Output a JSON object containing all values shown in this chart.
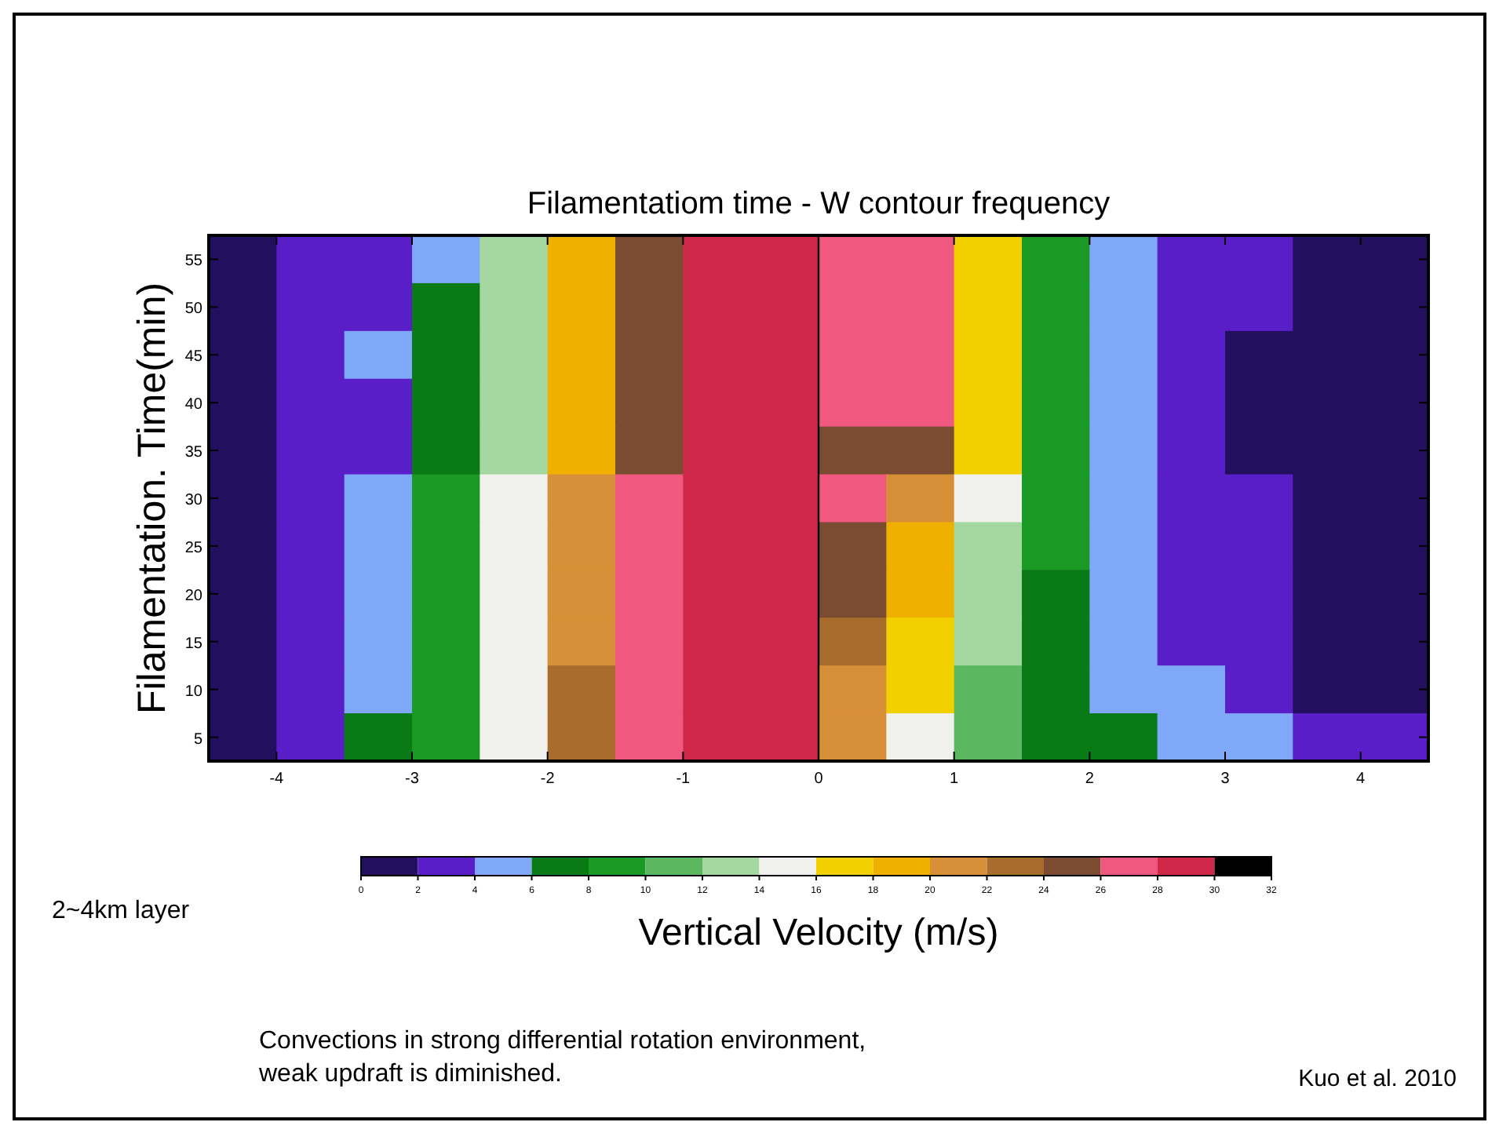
{
  "chart_data": {
    "type": "heatmap",
    "title": "Filamentatiom time - W contour frequency",
    "xlabel": "Vertical Velocity (m/s)",
    "ylabel": "Filamentation. Time(min)",
    "x": [
      -4.25,
      -3.75,
      -3.25,
      -2.75,
      -2.25,
      -1.75,
      -1.25,
      -0.75,
      -0.25,
      0.25,
      0.75,
      1.25,
      1.75,
      2.25,
      2.75,
      3.25,
      3.75,
      4.25
    ],
    "xlim": [
      -4.5,
      4.5
    ],
    "xticks": [
      -4,
      -3,
      -2,
      -1,
      0,
      1,
      2,
      3,
      4
    ],
    "y_categories": [
      "55",
      "50",
      "45",
      "40",
      "35",
      "30",
      "25",
      "20",
      "15",
      "10",
      "5"
    ],
    "cells": [
      [
        1,
        3,
        3,
        5,
        13,
        19,
        25,
        29,
        29,
        27,
        27,
        17,
        9,
        5,
        3,
        3,
        1,
        1
      ],
      [
        1,
        3,
        3,
        7,
        13,
        19,
        25,
        29,
        29,
        27,
        27,
        17,
        9,
        5,
        3,
        3,
        1,
        1
      ],
      [
        1,
        3,
        5,
        7,
        13,
        19,
        25,
        29,
        29,
        27,
        27,
        17,
        9,
        5,
        3,
        1,
        1,
        1
      ],
      [
        1,
        3,
        3,
        7,
        13,
        19,
        25,
        29,
        29,
        27,
        27,
        17,
        9,
        5,
        3,
        1,
        1,
        1
      ],
      [
        1,
        3,
        3,
        7,
        13,
        19,
        25,
        29,
        29,
        25,
        25,
        17,
        9,
        5,
        3,
        1,
        1,
        1
      ],
      [
        1,
        3,
        5,
        9,
        15,
        21,
        27,
        29,
        29,
        27,
        21,
        15,
        9,
        5,
        3,
        3,
        1,
        1
      ],
      [
        1,
        3,
        5,
        9,
        15,
        21,
        27,
        29,
        29,
        25,
        19,
        13,
        9,
        5,
        3,
        3,
        1,
        1
      ],
      [
        1,
        3,
        5,
        9,
        15,
        21,
        27,
        29,
        29,
        25,
        19,
        13,
        7,
        5,
        3,
        3,
        1,
        1
      ],
      [
        1,
        3,
        5,
        9,
        15,
        21,
        27,
        29,
        29,
        23,
        17,
        13,
        7,
        5,
        3,
        3,
        1,
        1
      ],
      [
        1,
        3,
        5,
        9,
        15,
        23,
        27,
        29,
        29,
        21,
        17,
        11,
        7,
        5,
        5,
        3,
        1,
        1
      ],
      [
        1,
        3,
        7,
        9,
        15,
        23,
        27,
        29,
        29,
        21,
        15,
        11,
        7,
        7,
        5,
        5,
        3,
        3
      ]
    ],
    "clim": [
      0,
      32
    ],
    "cticks": [
      0,
      2,
      4,
      6,
      8,
      10,
      12,
      14,
      16,
      18,
      20,
      22,
      24,
      26,
      28,
      30,
      32
    ],
    "colors": [
      "#22105e",
      "#5a1ec8",
      "#80a8f8",
      "#0a7a16",
      "#1a9a24",
      "#5cb860",
      "#a4d8a0",
      "#f0f0ec",
      "#f2d000",
      "#f0b000",
      "#d89038",
      "#a86c2c",
      "#7c4c32",
      "#f05880",
      "#d02848",
      "#000000"
    ],
    "ref_lines": [
      {
        "axis": "x",
        "value": 0,
        "color": "#000000"
      }
    ],
    "annotations": [
      "2~4km layer",
      "Convections in strong differential rotation environment,\nweak updraft is diminished.",
      "Kuo et al. 2010"
    ]
  }
}
